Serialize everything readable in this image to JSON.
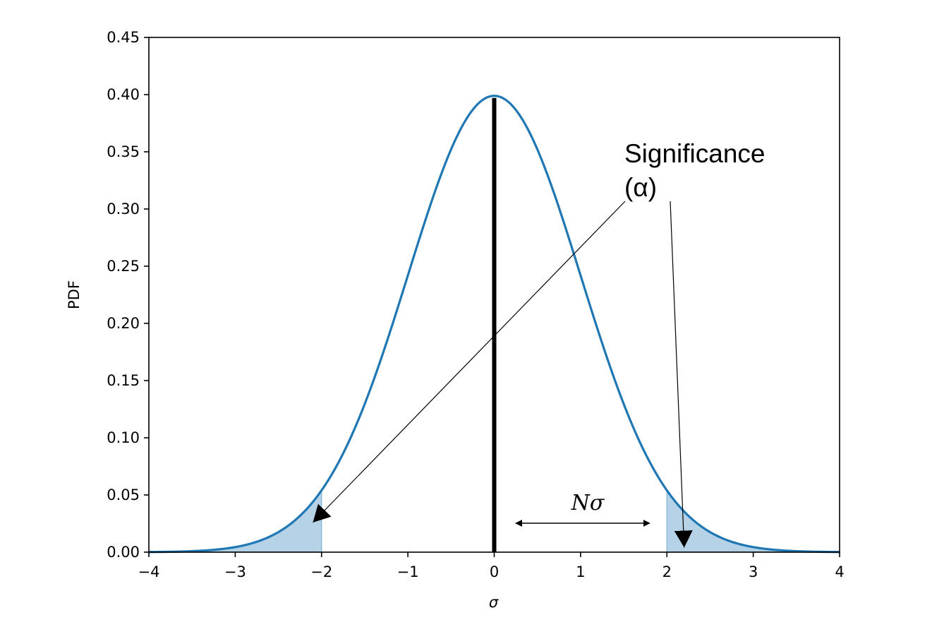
{
  "chart_data": {
    "type": "line",
    "series": [
      {
        "function": "standard normal pdf",
        "mean": 0,
        "sd": 1,
        "color": "#1f77b4"
      }
    ],
    "shaded_regions": [
      {
        "x_from": -4,
        "x_to": -2,
        "color": "#1f77b4"
      },
      {
        "x_from": 2,
        "x_to": 4,
        "color": "#1f77b4"
      }
    ],
    "mean_line": {
      "x": 0,
      "color": "#000000"
    },
    "xlabel": "σ",
    "ylabel": "PDF",
    "xlim": [
      -4,
      4
    ],
    "ylim": [
      0,
      0.45
    ],
    "xticks": [
      -4,
      -3,
      -2,
      -1,
      0,
      1,
      2,
      3,
      4
    ],
    "xtick_labels": [
      "−4",
      "−3",
      "−2",
      "−1",
      "0",
      "1",
      "2",
      "3",
      "4"
    ],
    "yticks": [
      0,
      0.05,
      0.1,
      0.15,
      0.2,
      0.25,
      0.3,
      0.35,
      0.4,
      0.45
    ],
    "ytick_labels": [
      "0.00",
      "0.05",
      "0.10",
      "0.15",
      "0.20",
      "0.25",
      "0.30",
      "0.35",
      "0.40",
      "0.45"
    ],
    "annotations": {
      "significance": {
        "line1": "Significance",
        "line2": "(α)",
        "anchor": [
          1.5,
          0.35
        ],
        "arrow_targets": [
          [
            -2.1,
            0.026
          ],
          [
            2.2,
            0.004
          ]
        ]
      },
      "n_sigma": {
        "label": "Nσ",
        "arrow_from": [
          0.25,
          0.025
        ],
        "arrow_to": [
          1.8,
          0.025
        ]
      }
    },
    "grid": false
  }
}
